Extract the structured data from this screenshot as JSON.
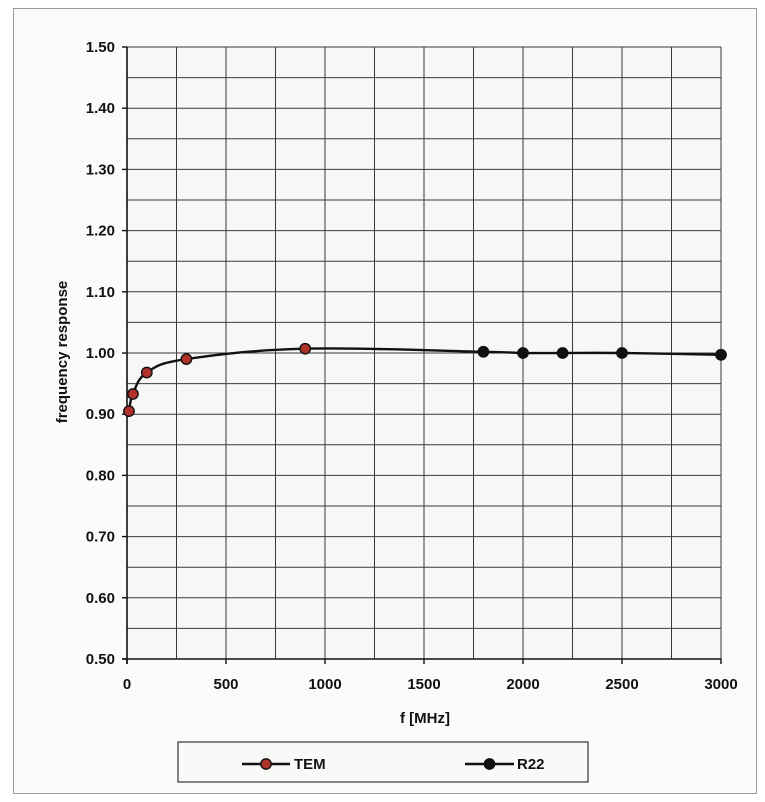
{
  "chart_data": {
    "type": "line",
    "title": "",
    "xlabel": "f [MHz]",
    "ylabel": "frequency response",
    "xlim": [
      0,
      3000
    ],
    "ylim": [
      0.5,
      1.5
    ],
    "x_ticks": [
      0,
      500,
      1000,
      1500,
      2000,
      2500,
      3000
    ],
    "y_ticks": [
      0.5,
      0.6,
      0.7,
      0.8,
      0.9,
      1.0,
      1.1,
      1.2,
      1.3,
      1.4,
      1.5
    ],
    "x_tick_labels": [
      "0",
      "500",
      "1000",
      "1500",
      "2000",
      "2500",
      "3000"
    ],
    "y_tick_labels": [
      "0.50",
      "0.60",
      "0.70",
      "0.80",
      "0.90",
      "1.00",
      "1.10",
      "1.20",
      "1.30",
      "1.40",
      "1.50"
    ],
    "grid": true,
    "legend_position": "bottom",
    "series": [
      {
        "name": "TEM",
        "color": "#b0302a",
        "x": [
          10,
          30,
          100,
          300,
          900
        ],
        "y": [
          0.905,
          0.933,
          0.968,
          0.99,
          1.007
        ]
      },
      {
        "name": "R22",
        "color": "#111111",
        "x": [
          1800,
          2000,
          2200,
          2500,
          3000
        ],
        "y": [
          1.002,
          1.0,
          1.0,
          1.0,
          0.997
        ]
      }
    ]
  }
}
